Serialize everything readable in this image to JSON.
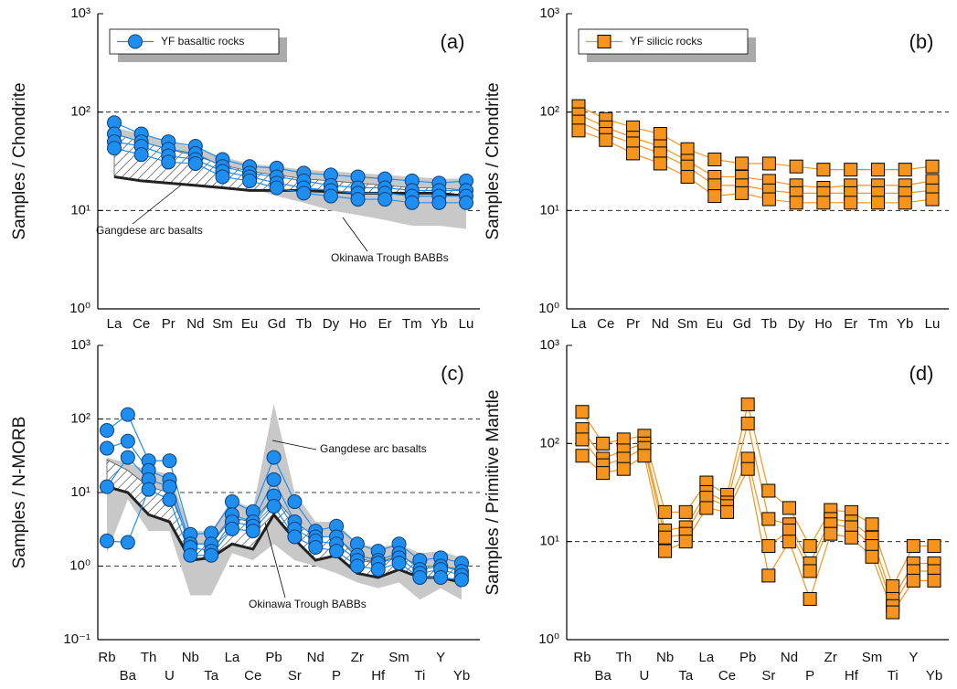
{
  "chart_data": [
    {
      "type": "line",
      "label": "(a)",
      "ylabel": "Samples / Chondrite",
      "log": true,
      "grid": "dashed",
      "legend_label": "YF basaltic rocks",
      "legend": "upper left",
      "color": "#1f8ef1",
      "marker": "circle",
      "categories": [
        "La",
        "Ce",
        "Pr",
        "Nd",
        "Sm",
        "Eu",
        "Gd",
        "Tb",
        "Dy",
        "Ho",
        "Er",
        "Tm",
        "Yb",
        "Lu"
      ],
      "ylim": [
        1,
        1000
      ],
      "yticks": [
        {
          "value": 1,
          "label": "10⁰"
        },
        {
          "value": 10,
          "label": "10¹"
        },
        {
          "value": 100,
          "label": "10²"
        },
        {
          "value": 1000,
          "label": "10³"
        }
      ],
      "fields": [
        {
          "name": "Gangdese arc basalts",
          "style": "gray",
          "lower": [
            45,
            40,
            33,
            30,
            22,
            17,
            14,
            12,
            10,
            9,
            8,
            7,
            7,
            6.5
          ],
          "upper": [
            70,
            60,
            50,
            43,
            35,
            30,
            28,
            26,
            25,
            24,
            23,
            22,
            21,
            21
          ]
        },
        {
          "name": "Okinawa Trough BABBs",
          "style": "hatch",
          "lower": [
            22,
            20,
            19,
            18,
            17,
            16,
            16,
            16,
            15.5,
            15,
            15,
            15,
            15,
            14
          ],
          "upper": [
            60,
            50,
            42,
            36,
            29,
            25,
            23,
            21,
            20,
            19,
            18,
            17,
            17,
            16
          ]
        }
      ],
      "series": [
        {
          "values": [
            78,
            60,
            50,
            45,
            33,
            28,
            27,
            24,
            23,
            22,
            21,
            20,
            19,
            20
          ]
        },
        {
          "values": [
            60,
            50,
            42,
            38,
            28,
            24,
            22,
            20,
            18,
            17,
            17,
            16,
            16,
            16
          ]
        },
        {
          "values": [
            50,
            45,
            36,
            33,
            25,
            22,
            19,
            17,
            16,
            15,
            15,
            14,
            14,
            14
          ]
        },
        {
          "values": [
            43,
            37,
            31,
            30,
            22,
            20,
            17,
            15,
            14,
            13,
            13,
            12,
            12,
            12
          ]
        }
      ]
    },
    {
      "type": "line",
      "label": "(b)",
      "ylabel": "Samples / Chondrite",
      "log": true,
      "grid": "dashed",
      "legend_label": "YF silicic rocks",
      "legend": "upper left",
      "color": "#f7941d",
      "marker": "square",
      "categories": [
        "La",
        "Ce",
        "Pr",
        "Nd",
        "Sm",
        "Eu",
        "Gd",
        "Tb",
        "Dy",
        "Ho",
        "Er",
        "Tm",
        "Yb",
        "Lu"
      ],
      "ylim": [
        1,
        1000
      ],
      "yticks": [
        {
          "value": 1,
          "label": "10⁰"
        },
        {
          "value": 10,
          "label": "10¹"
        },
        {
          "value": 100,
          "label": "10²"
        },
        {
          "value": 1000,
          "label": "10³"
        }
      ],
      "fields": [],
      "series": [
        {
          "values": [
            115,
            85,
            70,
            60,
            42,
            33,
            30,
            30,
            28,
            26,
            26,
            26,
            26,
            28
          ]
        },
        {
          "values": [
            95,
            70,
            55,
            45,
            32,
            22,
            22,
            20,
            18,
            17,
            18,
            18,
            18,
            20
          ]
        },
        {
          "values": [
            80,
            60,
            48,
            38,
            28,
            18,
            18,
            16,
            15,
            15,
            15,
            15,
            15,
            16
          ]
        },
        {
          "values": [
            65,
            52,
            38,
            30,
            22,
            14,
            15,
            13,
            12,
            12,
            12,
            12,
            12,
            13
          ]
        }
      ]
    },
    {
      "type": "line",
      "label": "(c)",
      "ylabel": "Samples / N-MORB",
      "log": true,
      "grid": "dashed",
      "color": "#1f8ef1",
      "marker": "circle",
      "categories": [
        "Rb",
        "Ba",
        "Th",
        "U",
        "Nb",
        "Ta",
        "La",
        "Ce",
        "Pb",
        "Sr",
        "Nd",
        "P",
        "Zr",
        "Hf",
        "Sm",
        "Ti",
        "Y",
        "Yb"
      ],
      "ylim": [
        0.1,
        1000
      ],
      "yticks": [
        {
          "value": 0.1,
          "label": "10⁻¹"
        },
        {
          "value": 1,
          "label": "10⁰"
        },
        {
          "value": 10,
          "label": "10¹"
        },
        {
          "value": 100,
          "label": "10²"
        },
        {
          "value": 1000,
          "label": "10³"
        }
      ],
      "fields": [
        {
          "name": "Gangdese arc basalts",
          "style": "gray",
          "lower": [
            1.5,
            8,
            3,
            3,
            0.4,
            0.4,
            1.5,
            1.2,
            2,
            1.2,
            1,
            0.8,
            0.6,
            0.5,
            0.6,
            0.35,
            0.5,
            0.35
          ],
          "upper": [
            30,
            25,
            20,
            18,
            3,
            3,
            8,
            6,
            160,
            10,
            4,
            4,
            2,
            1.8,
            2,
            1.5,
            1.6,
            1.3
          ]
        },
        {
          "name": "Okinawa Trough BABBs",
          "style": "hatch",
          "lower": [
            12,
            10,
            5,
            4,
            1.2,
            1.3,
            2,
            1.7,
            5,
            2.3,
            1.2,
            1.4,
            0.8,
            0.7,
            0.9,
            0.7,
            0.7,
            0.6
          ],
          "upper": [
            28,
            20,
            12,
            10,
            2,
            2,
            4.5,
            4,
            9,
            4,
            2.5,
            2.5,
            1.3,
            1.1,
            1.4,
            1,
            1,
            0.9
          ]
        }
      ],
      "series": [
        {
          "values": [
            70,
            115,
            27,
            27,
            2.7,
            2.8,
            7.5,
            5.5,
            30,
            7.5,
            3,
            3.5,
            2,
            1.6,
            2,
            1.2,
            1.3,
            1.1
          ]
        },
        {
          "values": [
            40,
            50,
            20,
            15,
            2,
            2,
            5,
            4,
            15,
            4,
            2.5,
            2.5,
            1.4,
            1.2,
            1.5,
            0.9,
            1,
            0.85
          ]
        },
        {
          "values": [
            12,
            30,
            15,
            12,
            1.8,
            1.6,
            4,
            3.5,
            9,
            3.2,
            2.2,
            2,
            1.2,
            1.1,
            1.3,
            0.8,
            0.9,
            0.75
          ]
        },
        {
          "values": [
            2.2,
            2.1,
            11,
            8,
            1.4,
            1.4,
            3.2,
            3,
            6.5,
            2.5,
            1.8,
            1.6,
            1,
            0.9,
            1.1,
            0.7,
            0.7,
            0.65
          ]
        }
      ]
    },
    {
      "type": "line",
      "label": "(d)",
      "ylabel": "Samples / Primitive Mantle",
      "log": true,
      "grid": "dashed",
      "color": "#f7941d",
      "marker": "square",
      "categories": [
        "Rb",
        "Ba",
        "Th",
        "U",
        "Nb",
        "Ta",
        "La",
        "Ce",
        "Pb",
        "Sr",
        "Nd",
        "P",
        "Zr",
        "Hf",
        "Sm",
        "Ti",
        "Y",
        "Yb"
      ],
      "ylim": [
        1,
        1000
      ],
      "yticks": [
        {
          "value": 1,
          "label": "10⁰"
        },
        {
          "value": 10,
          "label": "10¹"
        },
        {
          "value": 100,
          "label": "10²"
        },
        {
          "value": 1000,
          "label": "10³"
        }
      ],
      "fields": [],
      "series": [
        {
          "values": [
            210,
            100,
            110,
            120,
            20,
            20,
            40,
            30,
            250,
            33,
            22,
            9,
            21,
            20,
            15,
            3.5,
            9,
            9
          ]
        },
        {
          "values": [
            140,
            70,
            85,
            100,
            13,
            14,
            32,
            25,
            160,
            17,
            15,
            6,
            17,
            16,
            11,
            2.6,
            6,
            6
          ]
        },
        {
          "values": [
            110,
            60,
            70,
            90,
            11,
            12,
            28,
            23,
            70,
            9,
            13,
            5,
            15,
            14,
            9,
            2.2,
            5,
            5
          ]
        },
        {
          "values": [
            75,
            50,
            55,
            75,
            8,
            10,
            22,
            20,
            55,
            4.5,
            10,
            2.6,
            12,
            11,
            7,
            1.9,
            4,
            4
          ]
        }
      ]
    }
  ]
}
